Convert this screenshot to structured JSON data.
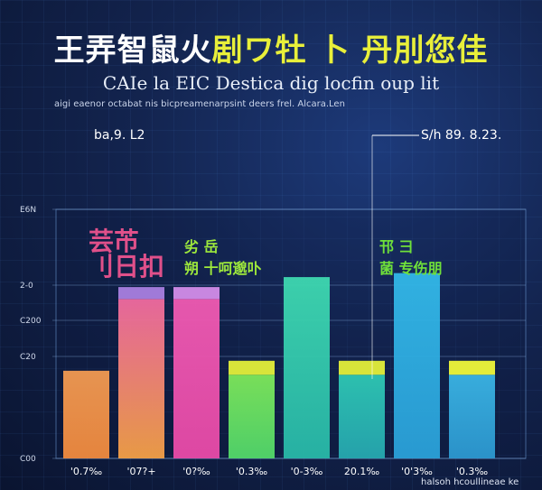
{
  "header": {
    "title_part1": "王弄智鼠火",
    "title_part2": "剧ワ牡 卜 丹刖您佳",
    "subtitle": "CAIе la EIC Destica dig locfin oup lit",
    "caption": "aigi eaenor octabat nis bicpreamenarpsint deers frel. Alcara.Len",
    "badge_left": "ba,9. L2",
    "badge_right": "S/h 89. 8.23.",
    "footnote": "halsoh hcoullineae ke"
  },
  "callouts": {
    "left_big": "芸芇\n刂日扣",
    "left_small": "劣 岳\n朔 十呵邈卟",
    "right_small": "邗 彐\n菌 专伤朋",
    "left_big_color": "#e0508a",
    "left_small_color": "#9ee93c",
    "right_small_color": "#6fe03a"
  },
  "chart_data": {
    "type": "bar",
    "ytick_labels": [
      "C00",
      "C20",
      "C200",
      "2-0",
      "E6N"
    ],
    "categories": [
      "'0.7‰",
      "'07?+",
      "'0?‰",
      "'0.3‰",
      "'0-3‰",
      "20.1‰",
      "'0'3‰",
      "'0.3‰"
    ],
    "values": [
      44,
      80,
      80,
      42,
      91,
      42,
      93,
      42
    ],
    "cap_values": [
      0,
      6,
      6,
      7,
      0,
      7,
      0,
      7
    ],
    "ylim": [
      0,
      125
    ],
    "grid": true,
    "colors_top": [
      "#f29a52",
      "#f06aa0",
      "#f05ab2",
      "#7ee85a",
      "#3ed8b0",
      "#2ec8b4",
      "#32b8e8",
      "#3ab4e4"
    ],
    "colors_bottom": [
      "#f08a3e",
      "#f3a046",
      "#e84aa8",
      "#52d86a",
      "#28b8a8",
      "#26a8b0",
      "#2aa0d8",
      "#2c98d0"
    ],
    "cap_colors": [
      "",
      "#a07ad8",
      "#c887e0",
      "#d8e43a",
      "",
      "#d8e43a",
      "",
      "#e4ec3a"
    ]
  }
}
